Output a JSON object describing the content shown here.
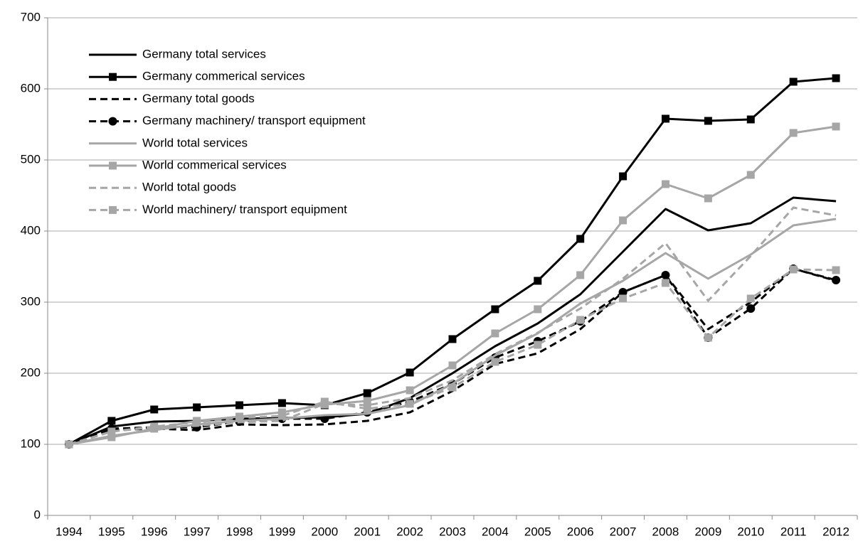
{
  "chart_data": {
    "type": "line",
    "categories": [
      "1994",
      "1995",
      "1996",
      "1997",
      "1998",
      "1999",
      "2000",
      "2001",
      "2002",
      "2003",
      "2004",
      "2005",
      "2006",
      "2007",
      "2008",
      "2009",
      "2010",
      "2011",
      "2012"
    ],
    "ylim": [
      0,
      700
    ],
    "yticks": [
      0,
      100,
      200,
      300,
      400,
      500,
      600,
      700
    ],
    "grid": true,
    "legend": "upper left",
    "series": [
      {
        "name": "Germany total services",
        "color": "#000000",
        "line_style": "solid",
        "marker": "none",
        "values": [
          100,
          125,
          132,
          133,
          136,
          137,
          138,
          143,
          165,
          200,
          238,
          270,
          311,
          371,
          431,
          401,
          411,
          447,
          442
        ]
      },
      {
        "name": "Germany commerical services",
        "color": "#000000",
        "line_style": "solid",
        "marker": "square",
        "values": [
          100,
          133,
          149,
          152,
          155,
          158,
          155,
          172,
          201,
          248,
          290,
          330,
          389,
          477,
          558,
          555,
          557,
          610,
          615
        ]
      },
      {
        "name": "Germany total goods",
        "color": "#000000",
        "line_style": "dashed",
        "marker": "none",
        "values": [
          100,
          120,
          122,
          120,
          128,
          127,
          128,
          133,
          145,
          175,
          213,
          228,
          262,
          314,
          338,
          262,
          300,
          347,
          330
        ]
      },
      {
        "name": "Germany machinery/ transport equipment",
        "color": "#000000",
        "line_style": "dashed",
        "marker": "circle",
        "values": [
          100,
          122,
          124,
          124,
          132,
          136,
          136,
          145,
          160,
          185,
          222,
          245,
          273,
          314,
          338,
          250,
          291,
          347,
          331
        ]
      },
      {
        "name": "World total services",
        "color": "#a6a6a6",
        "line_style": "solid",
        "marker": "none",
        "values": [
          100,
          112,
          120,
          128,
          133,
          136,
          141,
          143,
          155,
          185,
          225,
          256,
          298,
          330,
          369,
          333,
          367,
          408,
          417
        ]
      },
      {
        "name": "World commerical services",
        "color": "#a6a6a6",
        "line_style": "solid",
        "marker": "square",
        "values": [
          100,
          110,
          122,
          133,
          139,
          145,
          156,
          161,
          176,
          211,
          256,
          290,
          338,
          415,
          466,
          446,
          479,
          538,
          547
        ]
      },
      {
        "name": "World total goods",
        "color": "#a6a6a6",
        "line_style": "dashed",
        "marker": "none",
        "values": [
          100,
          118,
          124,
          126,
          131,
          133,
          157,
          155,
          165,
          190,
          227,
          257,
          291,
          333,
          383,
          302,
          365,
          433,
          422
        ]
      },
      {
        "name": "World machinery/ transport equipment",
        "color": "#a6a6a6",
        "line_style": "dashed",
        "marker": "square",
        "values": [
          100,
          118,
          125,
          131,
          137,
          140,
          160,
          150,
          157,
          180,
          216,
          240,
          275,
          305,
          327,
          250,
          305,
          346,
          345
        ]
      }
    ]
  }
}
